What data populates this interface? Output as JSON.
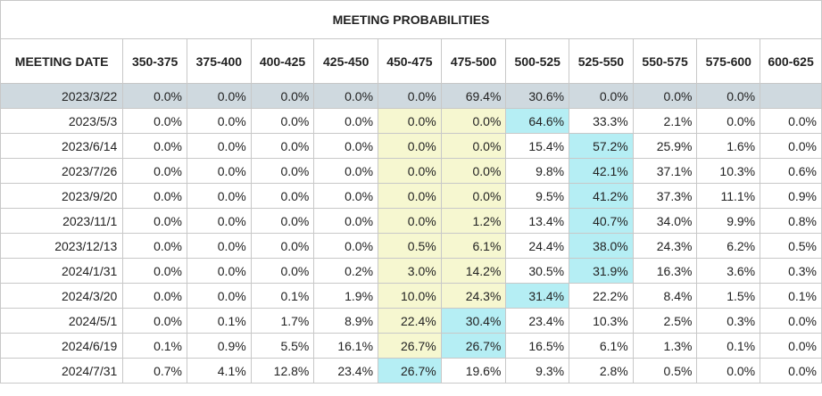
{
  "title": "MEETING PROBABILITIES",
  "header": [
    "MEETING DATE",
    "350-375",
    "375-400",
    "400-425",
    "425-450",
    "450-475",
    "475-500",
    "500-525",
    "525-550",
    "550-575",
    "575-600",
    "600-625"
  ],
  "rows": [
    {
      "date": "2023/3/22",
      "cells": [
        "0.0%",
        "0.0%",
        "0.0%",
        "0.0%",
        "0.0%",
        "69.4%",
        "30.6%",
        "0.0%",
        "0.0%",
        "0.0%",
        ""
      ],
      "highlights": []
    },
    {
      "date": "2023/5/3",
      "cells": [
        "0.0%",
        "0.0%",
        "0.0%",
        "0.0%",
        "0.0%",
        "0.0%",
        "64.6%",
        "33.3%",
        "2.1%",
        "0.0%",
        "0.0%"
      ],
      "highlights": [
        [
          "yellow",
          4
        ],
        [
          "yellow",
          5
        ],
        [
          "cyan",
          6
        ]
      ]
    },
    {
      "date": "2023/6/14",
      "cells": [
        "0.0%",
        "0.0%",
        "0.0%",
        "0.0%",
        "0.0%",
        "0.0%",
        "15.4%",
        "57.2%",
        "25.9%",
        "1.6%",
        "0.0%"
      ],
      "highlights": [
        [
          "yellow",
          4
        ],
        [
          "yellow",
          5
        ],
        [
          "cyan",
          7
        ]
      ]
    },
    {
      "date": "2023/7/26",
      "cells": [
        "0.0%",
        "0.0%",
        "0.0%",
        "0.0%",
        "0.0%",
        "0.0%",
        "9.8%",
        "42.1%",
        "37.1%",
        "10.3%",
        "0.6%"
      ],
      "highlights": [
        [
          "yellow",
          4
        ],
        [
          "yellow",
          5
        ],
        [
          "cyan",
          7
        ]
      ]
    },
    {
      "date": "2023/9/20",
      "cells": [
        "0.0%",
        "0.0%",
        "0.0%",
        "0.0%",
        "0.0%",
        "0.0%",
        "9.5%",
        "41.2%",
        "37.3%",
        "11.1%",
        "0.9%"
      ],
      "highlights": [
        [
          "yellow",
          4
        ],
        [
          "yellow",
          5
        ],
        [
          "cyan",
          7
        ]
      ]
    },
    {
      "date": "2023/11/1",
      "cells": [
        "0.0%",
        "0.0%",
        "0.0%",
        "0.0%",
        "0.0%",
        "1.2%",
        "13.4%",
        "40.7%",
        "34.0%",
        "9.9%",
        "0.8%"
      ],
      "highlights": [
        [
          "yellow",
          4
        ],
        [
          "yellow",
          5
        ],
        [
          "cyan",
          7
        ]
      ]
    },
    {
      "date": "2023/12/13",
      "cells": [
        "0.0%",
        "0.0%",
        "0.0%",
        "0.0%",
        "0.5%",
        "6.1%",
        "24.4%",
        "38.0%",
        "24.3%",
        "6.2%",
        "0.5%"
      ],
      "highlights": [
        [
          "yellow",
          4
        ],
        [
          "yellow",
          5
        ],
        [
          "cyan",
          7
        ]
      ]
    },
    {
      "date": "2024/1/31",
      "cells": [
        "0.0%",
        "0.0%",
        "0.0%",
        "0.2%",
        "3.0%",
        "14.2%",
        "30.5%",
        "31.9%",
        "16.3%",
        "3.6%",
        "0.3%"
      ],
      "highlights": [
        [
          "yellow",
          4
        ],
        [
          "yellow",
          5
        ],
        [
          "cyan",
          7
        ]
      ]
    },
    {
      "date": "2024/3/20",
      "cells": [
        "0.0%",
        "0.0%",
        "0.1%",
        "1.9%",
        "10.0%",
        "24.3%",
        "31.4%",
        "22.2%",
        "8.4%",
        "1.5%",
        "0.1%"
      ],
      "highlights": [
        [
          "yellow",
          4
        ],
        [
          "yellow",
          5
        ],
        [
          "cyan",
          6
        ]
      ]
    },
    {
      "date": "2024/5/1",
      "cells": [
        "0.0%",
        "0.1%",
        "1.7%",
        "8.9%",
        "22.4%",
        "30.4%",
        "23.4%",
        "10.3%",
        "2.5%",
        "0.3%",
        "0.0%"
      ],
      "highlights": [
        [
          "yellow",
          4
        ],
        [
          "cyan",
          5
        ]
      ]
    },
    {
      "date": "2024/6/19",
      "cells": [
        "0.1%",
        "0.9%",
        "5.5%",
        "16.1%",
        "26.7%",
        "26.7%",
        "16.5%",
        "6.1%",
        "1.3%",
        "0.1%",
        "0.0%"
      ],
      "highlights": [
        [
          "yellow",
          4
        ],
        [
          "cyan",
          5
        ]
      ]
    },
    {
      "date": "2024/7/31",
      "cells": [
        "0.7%",
        "4.1%",
        "12.8%",
        "23.4%",
        "26.7%",
        "19.6%",
        "9.3%",
        "2.8%",
        "0.5%",
        "0.0%",
        "0.0%"
      ],
      "highlights": [
        [
          "cyan",
          4
        ]
      ]
    }
  ],
  "colors": {
    "current_row_bg": "#cfd9df",
    "highlight_yellow": "#f6f7d0",
    "highlight_cyan": "#b5eef4"
  }
}
